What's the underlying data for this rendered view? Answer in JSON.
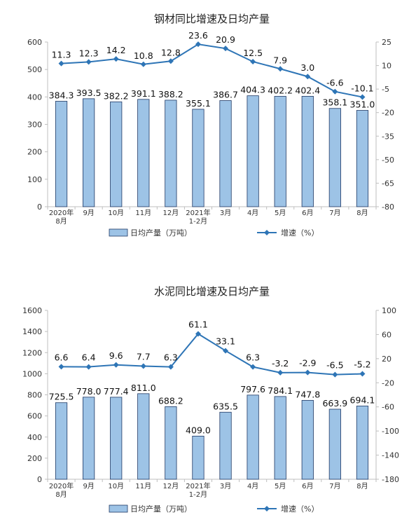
{
  "colors": {
    "bar_fill": "#9dc3e6",
    "bar_stroke": "#1f3864",
    "line": "#2e75b6",
    "axis": "#bfbfbf"
  },
  "chart_data": [
    {
      "type": "bar+line",
      "title": "钢材同比增速及日均产量",
      "categories": [
        [
          "2020年",
          "8月"
        ],
        [
          "9月"
        ],
        [
          "10月"
        ],
        [
          "11月"
        ],
        [
          "12月"
        ],
        [
          "2021年",
          "1-2月"
        ],
        [
          "3月"
        ],
        [
          "4月"
        ],
        [
          "5月"
        ],
        [
          "6月"
        ],
        [
          "7月"
        ],
        [
          "8月"
        ]
      ],
      "series": [
        {
          "name": "日均产量（万吨）",
          "kind": "bar",
          "axis": "left",
          "values": [
            384.3,
            393.5,
            382.2,
            391.1,
            388.2,
            355.1,
            386.7,
            404.3,
            402.2,
            402.4,
            358.1,
            351.0
          ],
          "labels": [
            "384.3",
            "393.5",
            "382.2",
            "391.1",
            "388.2",
            "355.1",
            "386.7",
            "404.3",
            "402.2",
            "402.4",
            "358.1",
            "351.0"
          ]
        },
        {
          "name": "增速（%）",
          "kind": "line",
          "axis": "right",
          "values": [
            11.3,
            12.3,
            14.2,
            10.8,
            12.8,
            23.6,
            20.9,
            12.5,
            7.9,
            3.0,
            -6.6,
            -10.1
          ],
          "labels": [
            "11.3",
            "12.3",
            "14.2",
            "10.8",
            "12.8",
            "23.6",
            "20.9",
            "12.5",
            "7.9",
            "3.0",
            "-6.6",
            "-10.1"
          ]
        }
      ],
      "y_left": {
        "min": 0,
        "max": 600,
        "ticks": [
          "0",
          "100",
          "200",
          "300",
          "400",
          "500",
          "600"
        ]
      },
      "y_right": {
        "min": -80,
        "max": 25,
        "ticks": [
          "25",
          "10",
          "-5",
          "-20",
          "-35",
          "-50",
          "-65",
          "-80"
        ]
      },
      "legend": {
        "placement": "bottom",
        "bar_label": "日均产量（万吨）",
        "line_label": "增速（%）"
      },
      "grid": false
    },
    {
      "type": "bar+line",
      "title": "水泥同比增速及日均产量",
      "categories": [
        [
          "2020年",
          "8月"
        ],
        [
          "9月"
        ],
        [
          "10月"
        ],
        [
          "11月"
        ],
        [
          "12月"
        ],
        [
          "2021年",
          "1-2月"
        ],
        [
          "3月"
        ],
        [
          "4月"
        ],
        [
          "5月"
        ],
        [
          "6月"
        ],
        [
          "7月"
        ],
        [
          "8月"
        ]
      ],
      "series": [
        {
          "name": "日均产量（万吨）",
          "kind": "bar",
          "axis": "left",
          "values": [
            725.5,
            778.0,
            777.4,
            811.0,
            688.2,
            409.0,
            635.5,
            797.6,
            784.1,
            747.8,
            663.9,
            694.1
          ],
          "labels": [
            "725.5",
            "778.0",
            "777.4",
            "811.0",
            "688.2",
            "409.0",
            "635.5",
            "797.6",
            "784.1",
            "747.8",
            "663.9",
            "694.1"
          ]
        },
        {
          "name": "增速（%）",
          "kind": "line",
          "axis": "right",
          "values": [
            6.6,
            6.4,
            9.6,
            7.7,
            6.3,
            61.1,
            33.1,
            6.3,
            -3.2,
            -2.9,
            -6.5,
            -5.2
          ],
          "labels": [
            "6.6",
            "6.4",
            "9.6",
            "7.7",
            "6.3",
            "61.1",
            "33.1",
            "6.3",
            "-3.2",
            "-2.9",
            "-6.5",
            "-5.2"
          ]
        }
      ],
      "y_left": {
        "min": 0,
        "max": 1600,
        "ticks": [
          "0",
          "200",
          "400",
          "600",
          "800",
          "1000",
          "1200",
          "1400",
          "1600"
        ]
      },
      "y_right": {
        "min": -180,
        "max": 100,
        "ticks": [
          "100",
          "60",
          "20",
          "-20",
          "-60",
          "-100",
          "-140",
          "-180"
        ]
      },
      "legend": {
        "placement": "bottom",
        "bar_label": "日均产量（万吨）",
        "line_label": "增速（%）"
      },
      "grid": false
    }
  ]
}
